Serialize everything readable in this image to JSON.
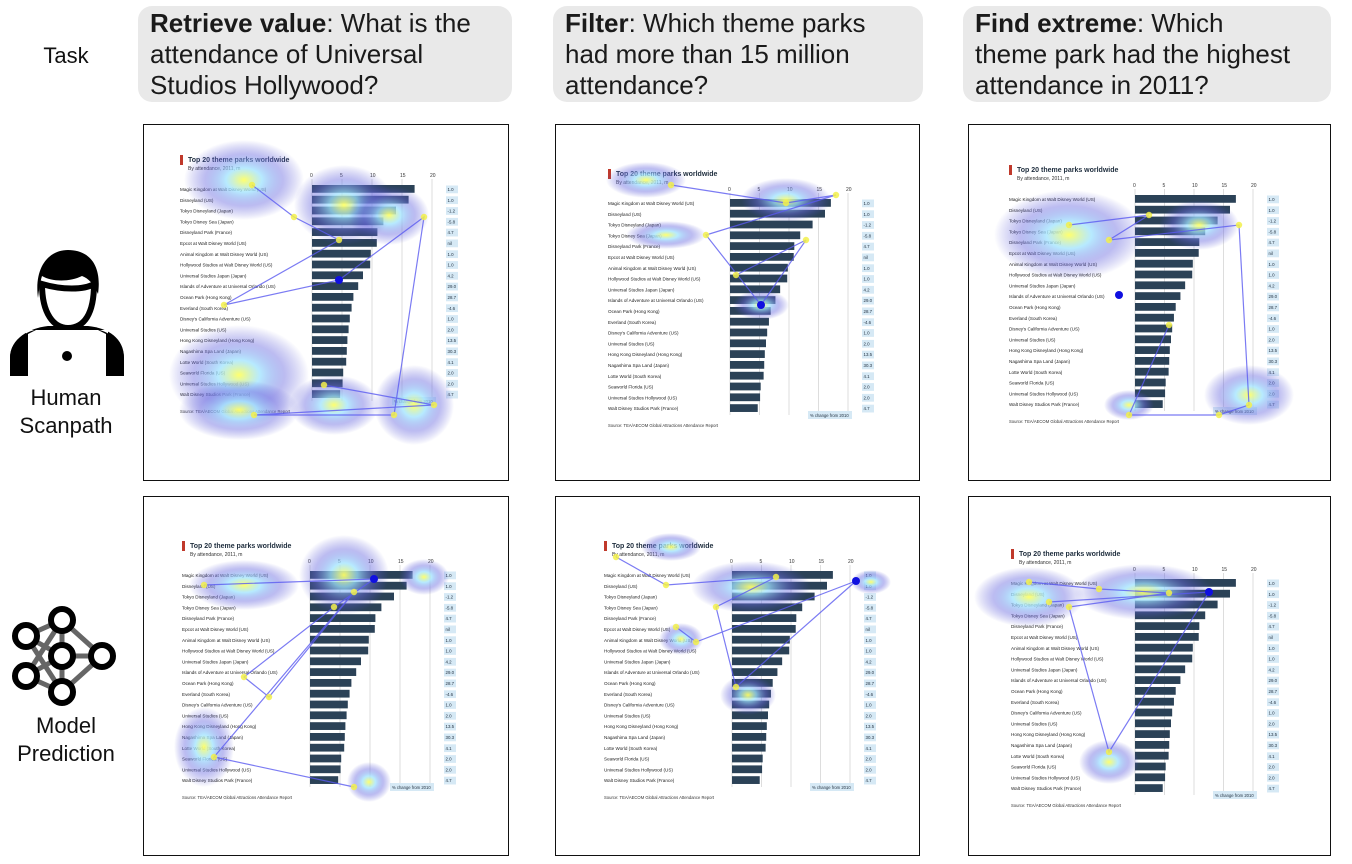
{
  "labels": {
    "task": "Task",
    "human": [
      "Human",
      "Scanpath"
    ],
    "model": [
      "Model",
      "Prediction"
    ]
  },
  "tasks": [
    {
      "bold": "Retrieve value",
      "rest": ": What is the attendance of Universal Studios Hollywood?",
      "lines": [
        "attendance of Universal",
        "Studios Hollywood?"
      ],
      "first": "What is the"
    },
    {
      "bold": "Filter",
      "rest": ": Which theme parks had more than 15 million attendance?",
      "lines": [
        "had more than 15 million",
        "attendance?"
      ],
      "first": "Which theme parks"
    },
    {
      "bold": "Find extreme",
      "rest": ": Which theme park had the highest attendance in 2011?",
      "lines": [
        "theme park had the highest",
        "attendance in 2011?"
      ],
      "first": "Which"
    }
  ],
  "chart": {
    "title": "Top 20 theme parks worldwide",
    "subtitle": "By attendance, 2011, m",
    "source": "Source: TEA/AECOM Global Attractions Attendance Report",
    "change_label": "% change from 2010",
    "accent": "#c0392b",
    "bar_color": "#2b4257",
    "ticks": [
      "0",
      "5",
      "10",
      "15",
      "20"
    ],
    "parks": [
      "Magic Kingdom at Walt Disney World",
      "Disneyland",
      "Tokyo Disneyland",
      "Tokyo Disney Sea",
      "Disneyland Park",
      "Epcot at Walt Disney World",
      "Animal Kingdom at Walt Disney World",
      "Hollywood Studios at Walt Disney World",
      "Universal Studios Japan",
      "Islands of Adventure at Universal Orlando",
      "Ocean Park",
      "Everland",
      "Disney's California Adventure",
      "Universal Studios",
      "Hong Kong Disneyland",
      "Nagashima Spa Land",
      "Lotte World",
      "Seaworld Florida",
      "Universal Studios Hollywood",
      "Walt Disney Studios Park"
    ],
    "regions": [
      "(US)",
      "(US)",
      "(Japan)",
      "(Japan)",
      "(France)",
      "(US)",
      "(US)",
      "(US)",
      "(Japan)",
      "(US)",
      "(Hong Kong)",
      "(South Korea)",
      "(US)",
      "(US)",
      "(Hong Kong)",
      "(Japan)",
      "(South Korea)",
      "(US)",
      "(US)",
      "(France)"
    ],
    "values": [
      17.1,
      16.1,
      14.0,
      11.9,
      10.9,
      10.8,
      9.8,
      9.7,
      8.5,
      7.7,
      6.9,
      6.6,
      6.3,
      6.1,
      5.9,
      5.8,
      5.7,
      5.2,
      5.1,
      4.7
    ],
    "changes": [
      "1.0",
      "1.0",
      "-1.2",
      "-5.8",
      "4.7",
      "nil",
      "1.0",
      "1.0",
      "4.2",
      "29.0",
      "28.7",
      "-4.6",
      "1.0",
      "2.0",
      "13.5",
      "30.3",
      "4.1",
      "2.0",
      "2.0",
      "4.7"
    ]
  }
}
